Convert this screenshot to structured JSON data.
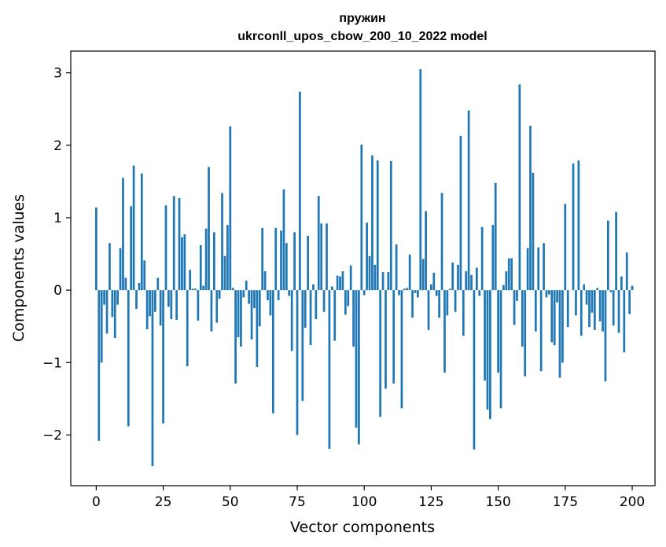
{
  "chart_data": {
    "type": "bar",
    "title": "пружин",
    "subtitle": "ukrconll_upos_cbow_200_10_2022 model",
    "xlabel": "Vector components",
    "ylabel": "Components values",
    "xlim": [
      -9.5,
      208.5
    ],
    "ylim": [
      -2.7,
      3.3
    ],
    "xticks": [
      0,
      25,
      50,
      75,
      100,
      125,
      150,
      175,
      200
    ],
    "yticks": [
      -2,
      -1,
      0,
      1,
      2,
      3
    ],
    "ytick_labels": [
      "−2",
      "−1",
      "0",
      "1",
      "2",
      "3"
    ],
    "grid": false,
    "legend": "none",
    "bar_color": "#1f77b4",
    "values": [
      1.14,
      -2.08,
      -1.0,
      -0.2,
      -0.6,
      0.65,
      -0.37,
      -0.66,
      -0.2,
      0.58,
      1.55,
      0.17,
      -1.88,
      1.16,
      1.72,
      -0.26,
      0.1,
      1.61,
      0.41,
      -0.54,
      -0.36,
      -2.43,
      -0.3,
      0.17,
      -0.49,
      -1.84,
      1.17,
      -0.23,
      -0.4,
      1.3,
      -0.41,
      1.27,
      0.73,
      0.77,
      -1.05,
      0.28,
      0.02,
      0.02,
      -0.42,
      0.62,
      0.06,
      0.85,
      1.7,
      -0.57,
      0.8,
      -0.45,
      -0.12,
      1.34,
      0.47,
      0.9,
      2.26,
      0.03,
      -1.29,
      -0.65,
      -0.78,
      -0.1,
      0.13,
      -0.19,
      -0.68,
      -0.25,
      -1.06,
      -0.5,
      0.86,
      0.26,
      -0.14,
      -0.35,
      -1.7,
      0.86,
      -0.14,
      0.82,
      1.39,
      0.65,
      -0.08,
      -0.84,
      0.8,
      -2.0,
      2.74,
      -1.53,
      -0.52,
      0.75,
      -0.76,
      0.08,
      -0.4,
      1.3,
      0.92,
      -0.3,
      0.92,
      -2.19,
      0.05,
      -0.7,
      0.2,
      0.19,
      0.26,
      -0.34,
      -0.22,
      0.34,
      -0.78,
      -1.9,
      -2.13,
      2.01,
      -0.07,
      0.93,
      0.47,
      1.86,
      0.35,
      1.79,
      -1.75,
      0.25,
      -1.36,
      0.25,
      1.78,
      -1.29,
      0.63,
      -0.07,
      -1.63,
      0.02,
      0.03,
      0.49,
      -0.38,
      -0.04,
      -0.1,
      3.05,
      0.43,
      1.09,
      -0.55,
      0.08,
      0.24,
      -0.08,
      -0.38,
      1.34,
      -1.14,
      -0.35,
      0.02,
      0.38,
      -0.3,
      0.35,
      2.13,
      -0.63,
      0.26,
      2.48,
      0.21,
      -2.2,
      0.31,
      -0.08,
      0.87,
      -1.25,
      -1.65,
      -1.78,
      0.9,
      1.48,
      -1.14,
      -1.63,
      0.07,
      0.26,
      0.44,
      0.44,
      -0.48,
      -0.15,
      2.84,
      -0.78,
      -1.19,
      0.58,
      2.27,
      1.62,
      -0.57,
      0.59,
      -1.12,
      0.65,
      -0.1,
      -0.06,
      -0.72,
      -0.76,
      -0.17,
      -1.21,
      -1.0,
      1.19,
      -0.51,
      0.0,
      1.75,
      -0.35,
      1.79,
      -0.63,
      0.08,
      -0.2,
      -0.51,
      -0.31,
      -0.55,
      0.03,
      -0.43,
      -0.57,
      -1.26,
      0.96,
      -0.03,
      -0.49,
      1.08,
      -0.59,
      0.19,
      -0.86,
      0.52,
      -0.33,
      0.06
    ]
  }
}
